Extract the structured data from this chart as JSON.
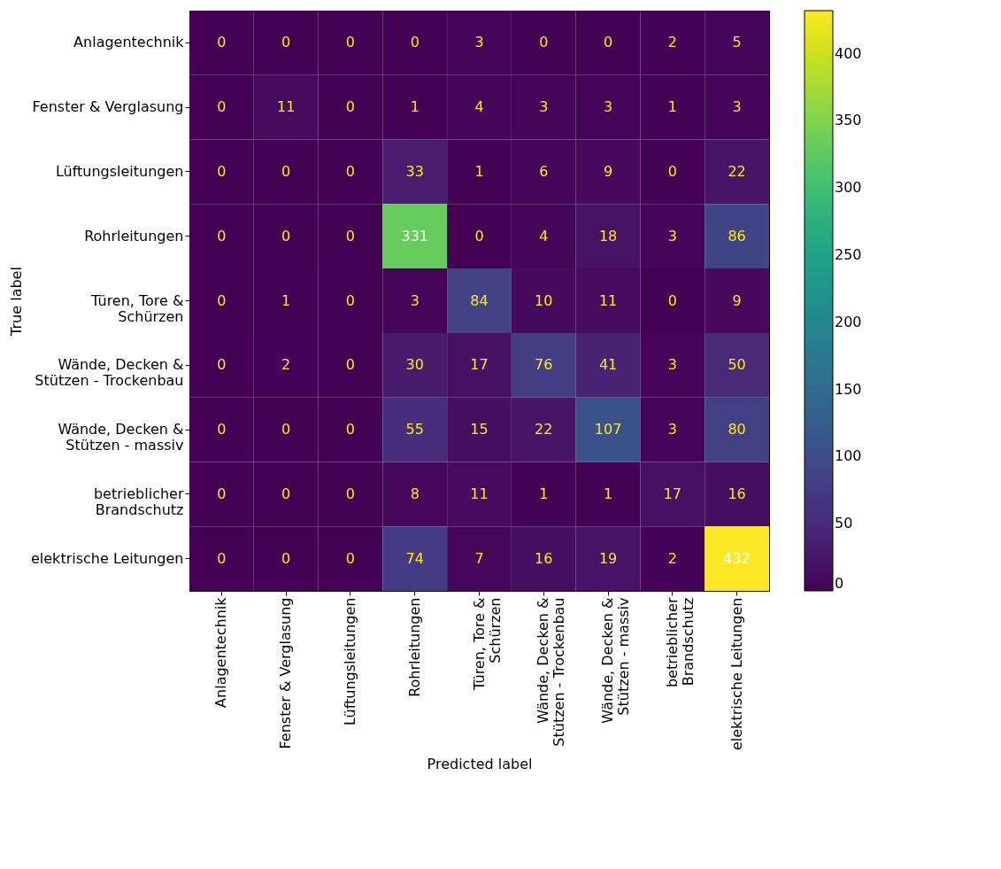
{
  "chart_data": {
    "type": "heatmap",
    "xlabel": "Predicted label",
    "ylabel": "True label",
    "categories": [
      "Anlagentechnik",
      "Fenster & Verglasung",
      "Lüftungsleitungen",
      "Rohrleitungen",
      "Türen, Tore &\nSchürzen",
      "Wände, Decken &\nStützen - Trockenbau",
      "Wände, Decken &\nStützen - massiv",
      "betrieblicher\nBrandschutz",
      "elektrische Leitungen"
    ],
    "y_categories": [
      "Anlagentechnik",
      "Fenster & Verglasung",
      "Lüftungsleitungen",
      "Rohrleitungen",
      "Türen, Tore &\nSchürzen",
      "Wände, Decken &\nStützen - Trockenbau",
      "Wände, Decken &\nStützen - massiv",
      "betrieblicher\nBrandschutz",
      "elektrische Leitungen"
    ],
    "cells": [
      [
        0,
        0,
        0,
        0,
        3,
        0,
        0,
        2,
        5
      ],
      [
        0,
        11,
        0,
        1,
        4,
        3,
        3,
        1,
        3
      ],
      [
        0,
        0,
        0,
        33,
        1,
        6,
        9,
        0,
        22
      ],
      [
        0,
        0,
        0,
        331,
        0,
        4,
        18,
        3,
        86
      ],
      [
        0,
        1,
        0,
        3,
        84,
        10,
        11,
        0,
        9
      ],
      [
        0,
        2,
        0,
        30,
        17,
        76,
        41,
        3,
        50
      ],
      [
        0,
        0,
        0,
        55,
        15,
        22,
        107,
        3,
        80
      ],
      [
        0,
        0,
        0,
        8,
        11,
        1,
        1,
        17,
        16
      ],
      [
        0,
        0,
        0,
        74,
        7,
        16,
        19,
        2,
        432
      ]
    ],
    "clim": [
      0,
      432
    ],
    "cticks": [
      0,
      50,
      100,
      150,
      200,
      250,
      300,
      350,
      400
    ],
    "data_labels": true
  }
}
